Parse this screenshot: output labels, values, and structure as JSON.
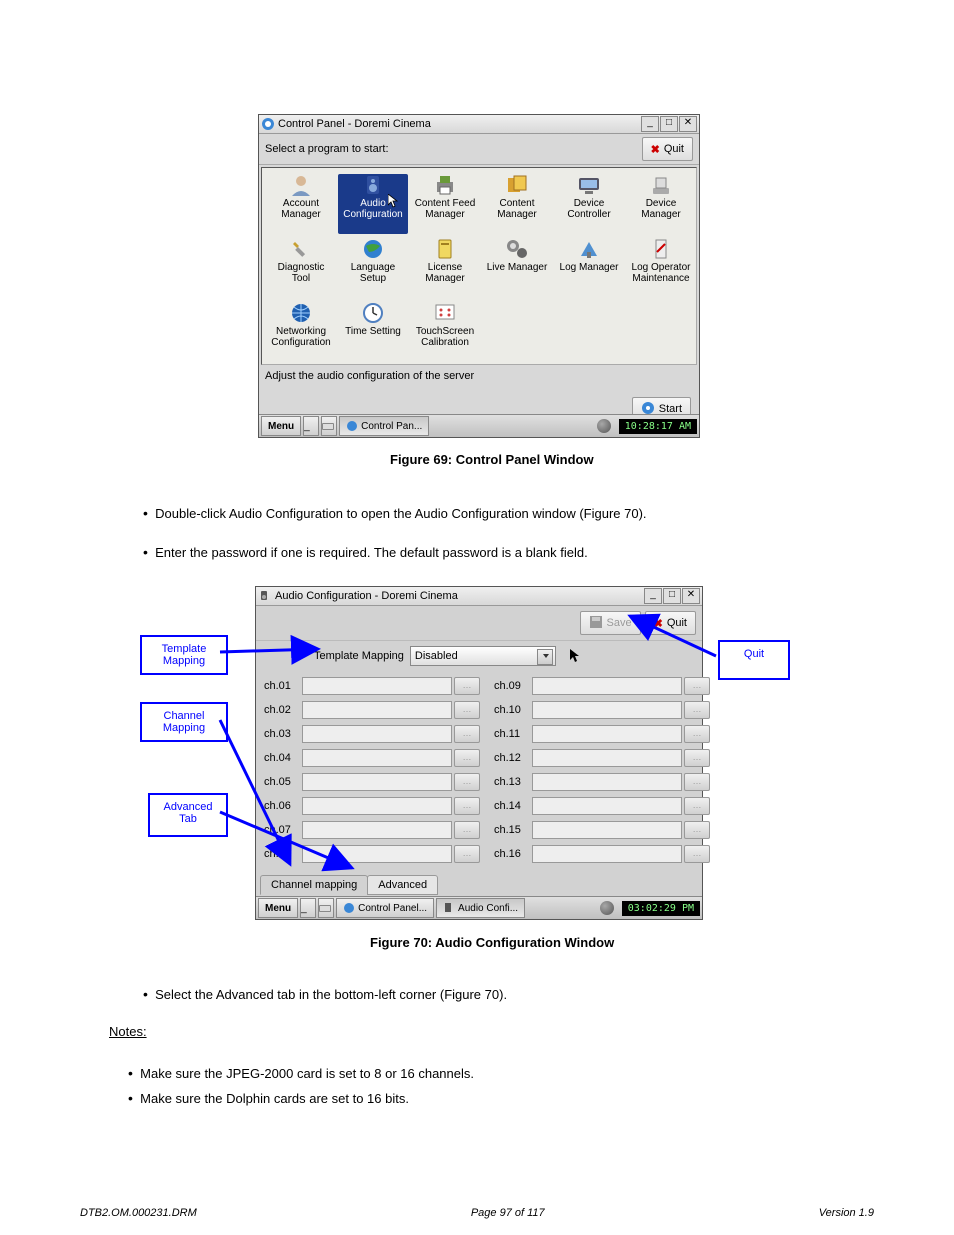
{
  "fig1": {
    "title": "Control Panel - Doremi Cinema",
    "prompt": "Select a program to start:",
    "quit": "Quit",
    "items": [
      {
        "label1": "Account",
        "label2": "Manager",
        "icon": "user"
      },
      {
        "label1": "Audio",
        "label2": "Configuration",
        "icon": "speaker",
        "selected": true
      },
      {
        "label1": "Content Feed",
        "label2": "Manager",
        "icon": "printer"
      },
      {
        "label1": "Content",
        "label2": "Manager",
        "icon": "content"
      },
      {
        "label1": "Device",
        "label2": "Controller",
        "icon": "controller"
      },
      {
        "label1": "Device",
        "label2": "Manager",
        "icon": "device"
      },
      {
        "label1": "Diagnostic",
        "label2": "Tool",
        "icon": "wrench"
      },
      {
        "label1": "Language",
        "label2": "Setup",
        "icon": "globe"
      },
      {
        "label1": "License",
        "label2": "Manager",
        "icon": "license"
      },
      {
        "label1": "Live Manager",
        "label2": "",
        "icon": "live"
      },
      {
        "label1": "Log Manager",
        "label2": "",
        "icon": "log"
      },
      {
        "label1": "Log Operator",
        "label2": "Maintenance",
        "icon": "logop"
      },
      {
        "label1": "Networking",
        "label2": "Configuration",
        "icon": "network"
      },
      {
        "label1": "Time Setting",
        "label2": "",
        "icon": "clock"
      },
      {
        "label1": "TouchScreen",
        "label2": "Calibration",
        "icon": "touch"
      }
    ],
    "status": "Adjust the audio configuration of the server",
    "start": "Start",
    "task_menu": "Menu",
    "task_item": "Control Pan...",
    "clock": "10:28:17 AM",
    "caption": "Figure 69: Control Panel Window"
  },
  "page": {
    "b1": "Double-click Audio Configuration to open the Audio Configuration window (Figure 70).",
    "b2": "Enter the password if one is required. The default password is a blank field.",
    "b3": "Select the Advanced tab in the bottom-left corner (Figure 70).",
    "notes_hdr": "Notes:",
    "n1": "Make sure the JPEG-2000 card is set to 8 or 16 channels.",
    "n2": "Make sure the Dolphin cards are set to 16 bits."
  },
  "fig2": {
    "title": "Audio Configuration - Doremi Cinema",
    "save": "Save",
    "quit": "Quit",
    "tm_label": "Template Mapping",
    "tm_value": "Disabled",
    "left_channels": [
      "ch.01",
      "ch.02",
      "ch.03",
      "ch.04",
      "ch.05",
      "ch.06",
      "ch.07",
      "ch.08"
    ],
    "right_channels": [
      "ch.09",
      "ch.10",
      "ch.11",
      "ch.12",
      "ch.13",
      "ch.14",
      "ch.15",
      "ch.16"
    ],
    "tab1": "Channel mapping",
    "tab2": "Advanced",
    "task_menu": "Menu",
    "task_item1": "Control Panel...",
    "task_item2": "Audio Confi...",
    "clock": "03:02:29 PM",
    "caption": "Figure 70: Audio Configuration Window"
  },
  "callouts": {
    "c1": "Template Mapping",
    "c2": "Channel Mapping",
    "c3": "Advanced Tab",
    "c4": "Quit"
  },
  "footer": {
    "left": "DTB2.OM.000231.DRM",
    "mid": "Page 97 of 117",
    "right": "Version 1.9"
  }
}
